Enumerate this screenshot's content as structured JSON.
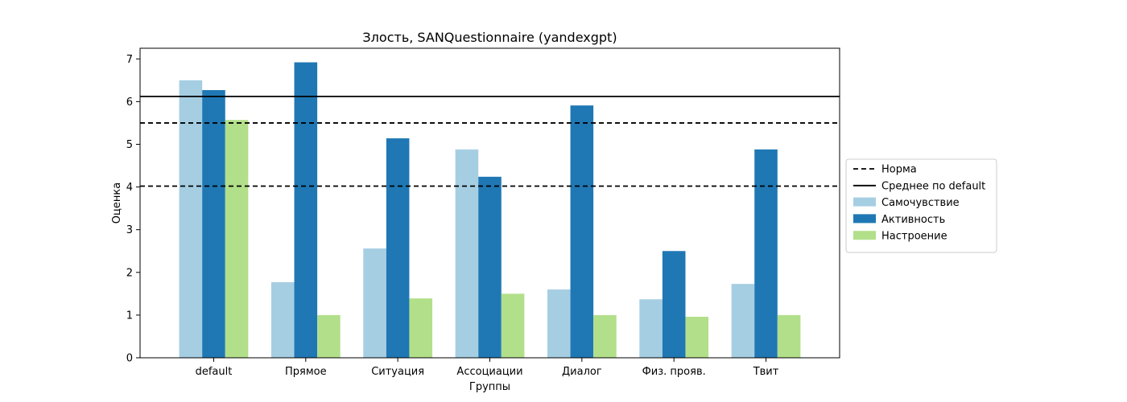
{
  "chart_data": {
    "type": "bar",
    "title": "Злость, SANQuestionnaire (yandexgpt)",
    "xlabel": "Группы",
    "ylabel": "Оценка",
    "ylim": [
      0,
      7.25
    ],
    "yticks": [
      0,
      1,
      2,
      3,
      4,
      5,
      6,
      7
    ],
    "categories": [
      "default",
      "Прямое",
      "Ситуация",
      "Ассоциации",
      "Диалог",
      "Физ. прояв.",
      "Твит"
    ],
    "series": [
      {
        "name": "Самочувствие",
        "color": "#a6cee3",
        "values": [
          6.5,
          1.77,
          2.56,
          4.88,
          1.6,
          1.37,
          1.73
        ]
      },
      {
        "name": "Активность",
        "color": "#1f78b4",
        "values": [
          6.27,
          6.92,
          5.14,
          4.24,
          5.91,
          2.5,
          4.88
        ]
      },
      {
        "name": "Настроение",
        "color": "#b2df8a",
        "values": [
          5.57,
          1.0,
          1.39,
          1.5,
          1.0,
          0.96,
          1.0
        ]
      }
    ],
    "reference_lines": [
      {
        "name": "Норма",
        "style": "dashed",
        "values": [
          5.5,
          4.02
        ]
      },
      {
        "name": "Среднее по default",
        "style": "solid",
        "values": [
          6.12
        ]
      }
    ],
    "legend_position": "right"
  }
}
